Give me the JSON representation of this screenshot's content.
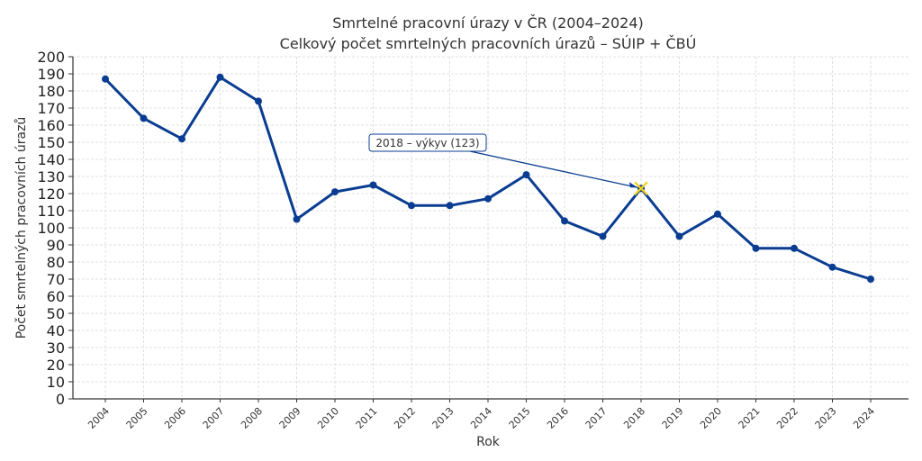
{
  "chart_data": {
    "type": "line",
    "title": "Smrtelné pracovní úrazy v ČR (2004–2024)",
    "subtitle": "Celkový počet smrtelných pracovních úrazů – SÚIP + ČBÚ",
    "xlabel": "Rok",
    "ylabel": "Počet smrtelných pracovních úrazů",
    "ylim": [
      0,
      200
    ],
    "yticks": [
      0,
      10,
      20,
      30,
      40,
      50,
      60,
      70,
      80,
      90,
      100,
      110,
      120,
      130,
      140,
      150,
      160,
      170,
      180,
      190,
      200
    ],
    "grid": true,
    "categories": [
      "2004",
      "2005",
      "2006",
      "2007",
      "2008",
      "2009",
      "2010",
      "2011",
      "2012",
      "2013",
      "2014",
      "2015",
      "2016",
      "2017",
      "2018",
      "2019",
      "2020",
      "2021",
      "2022",
      "2023",
      "2024"
    ],
    "series": [
      {
        "name": "Smrtelné pracovní úrazy",
        "color": "#0a3d91",
        "values": [
          187,
          164,
          152,
          188,
          174,
          105,
          121,
          125,
          113,
          113,
          117,
          131,
          104,
          95,
          123,
          95,
          108,
          88,
          88,
          77,
          70
        ]
      }
    ],
    "annotations": [
      {
        "text": "2018 – výkyv (123)",
        "x": "2018",
        "y": 123,
        "marker": "x",
        "marker_color": "#f2d21b"
      }
    ]
  }
}
